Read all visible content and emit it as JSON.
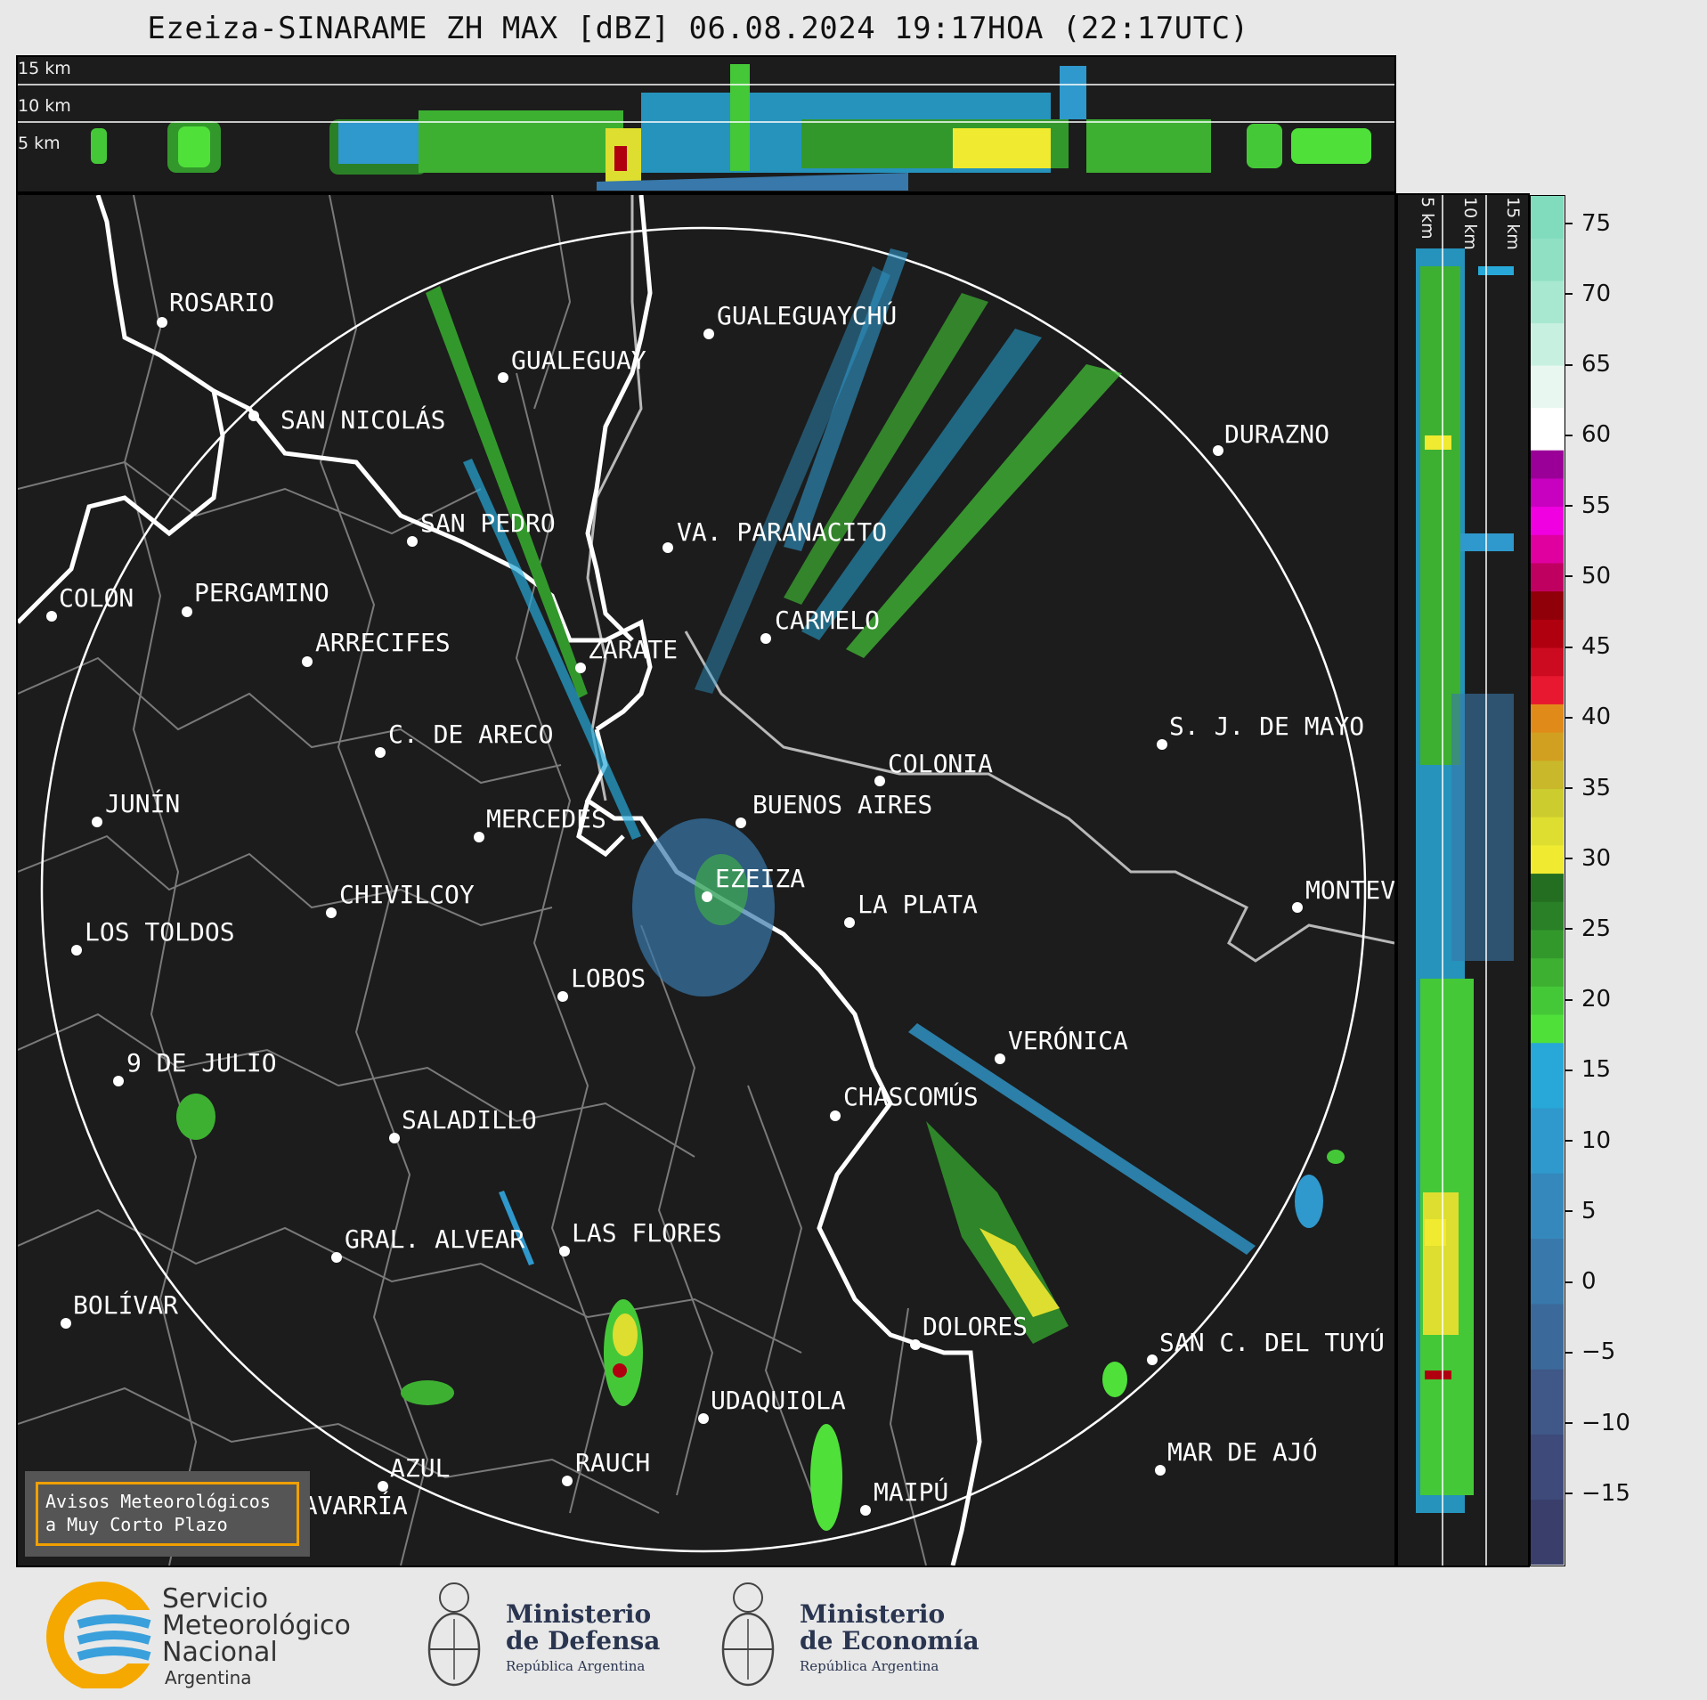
{
  "title": "Ezeiza-SINARAME ZH MAX [dBZ] 06.08.2024 19:17HOA (22:17UTC)",
  "top_strip": {
    "height_labels": [
      "15 km",
      "10 km",
      "5 km"
    ]
  },
  "side_strip": {
    "height_labels": [
      "5 km",
      "10 km",
      "15 km"
    ]
  },
  "colorbar": {
    "unit": "dBZ",
    "ticks": [
      "75",
      "70",
      "65",
      "60",
      "55",
      "50",
      "45",
      "40",
      "35",
      "30",
      "25",
      "20",
      "15",
      "10",
      "5",
      "0",
      "−5",
      "−10",
      "−15"
    ],
    "tick_values": [
      75,
      70,
      65,
      60,
      55,
      50,
      45,
      40,
      35,
      30,
      25,
      20,
      15,
      10,
      5,
      0,
      -5,
      -10,
      -15
    ],
    "range": [
      -20,
      77
    ],
    "bands": [
      {
        "from": -20,
        "to": 17,
        "colors": [
          "#3a3e6a",
          "#3d4a7a",
          "#3f5888",
          "#3b6a9a",
          "#3878aa",
          "#3488bb",
          "#2f98cc",
          "#27a8d8"
        ]
      },
      {
        "from": 17,
        "to": 29,
        "colors": [
          "#4fe03a",
          "#45c838",
          "#3db032",
          "#33982c",
          "#2a8026",
          "#246e22"
        ]
      },
      {
        "from": 29,
        "to": 41,
        "colors": [
          "#f0ea30",
          "#dede30",
          "#cccc2e",
          "#c8b82a",
          "#d2a020",
          "#e08a1a"
        ]
      },
      {
        "from": 41,
        "to": 49,
        "colors": [
          "#e81830",
          "#cc0a20",
          "#b00010",
          "#900008"
        ]
      },
      {
        "from": 49,
        "to": 59,
        "colors": [
          "#c00060",
          "#e000a0",
          "#f000e0",
          "#c800c0",
          "#9a0098"
        ]
      },
      {
        "from": 59,
        "to": 77,
        "colors": [
          "#ffffff",
          "#e8f8f0",
          "#c8f0e0",
          "#a8e8d0",
          "#90e0c4",
          "#80dcbc"
        ]
      }
    ]
  },
  "cities": [
    {
      "name": "ROSARIO"
    },
    {
      "name": "GUALEGUAYCHÚ"
    },
    {
      "name": "GUALEGUAY"
    },
    {
      "name": "SAN NICOLÁS"
    },
    {
      "name": "DURAZNO"
    },
    {
      "name": "SAN PEDRO"
    },
    {
      "name": "VA. PARANACITO"
    },
    {
      "name": "COLON"
    },
    {
      "name": "PERGAMINO"
    },
    {
      "name": "CARMELO"
    },
    {
      "name": "ARRECIFES"
    },
    {
      "name": "ZÁRATE"
    },
    {
      "name": "S. J. DE MAYO"
    },
    {
      "name": "C. DE ARECO"
    },
    {
      "name": "COLONIA"
    },
    {
      "name": "JUNÍN"
    },
    {
      "name": "BUENOS AIRES"
    },
    {
      "name": "MERCEDES"
    },
    {
      "name": "EZEIZA"
    },
    {
      "name": "CHIVILCOY"
    },
    {
      "name": "MONTEVIDEO"
    },
    {
      "name": "LA PLATA"
    },
    {
      "name": "LOS TOLDOS"
    },
    {
      "name": "LOBOS"
    },
    {
      "name": "VERÓNICA"
    },
    {
      "name": "9 DE JULIO"
    },
    {
      "name": "CHASCOMÚS"
    },
    {
      "name": "SALADILLO"
    },
    {
      "name": "GRAL. ALVEAR"
    },
    {
      "name": "LAS FLORES"
    },
    {
      "name": "BOLÍVAR"
    },
    {
      "name": "DOLORES"
    },
    {
      "name": "SAN C. DEL TUYÚ"
    },
    {
      "name": "UDAQUIOLA"
    },
    {
      "name": "RAUCH"
    },
    {
      "name": "MAR DE AJÓ"
    },
    {
      "name": "AZUL"
    },
    {
      "name": "OLAVARRÍA"
    },
    {
      "name": "MAIPÚ"
    }
  ],
  "alert_box": {
    "line1": "Avisos Meteorológicos",
    "line2": "a Muy Corto Plazo"
  },
  "logos": {
    "smn": {
      "line1": "Servicio",
      "line2": "Meteorológico",
      "line3": "Nacional",
      "line4": "Argentina"
    },
    "defensa": {
      "line1": "Ministerio",
      "line2": "de Defensa",
      "line3": "República Argentina"
    },
    "economia": {
      "line1": "Ministerio",
      "line2": "de Economía",
      "line3": "República Argentina"
    }
  },
  "colors": {
    "background": "#1c1c1c",
    "range_ring": "#ffffff",
    "coast": "#ffffff",
    "provinces": "#8a8a8a",
    "alert_border": "#f0a000"
  }
}
